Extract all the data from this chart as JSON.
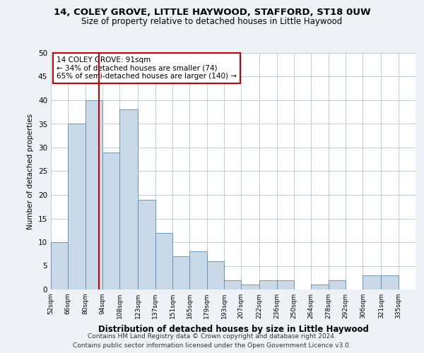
{
  "title1": "14, COLEY GROVE, LITTLE HAYWOOD, STAFFORD, ST18 0UW",
  "title2": "Size of property relative to detached houses in Little Haywood",
  "xlabel": "Distribution of detached houses by size in Little Haywood",
  "ylabel": "Number of detached properties",
  "footer1": "Contains HM Land Registry data © Crown copyright and database right 2024.",
  "footer2": "Contains public sector information licensed under the Open Government Licence v3.0.",
  "annotation_line1": "14 COLEY GROVE: 91sqm",
  "annotation_line2": "← 34% of detached houses are smaller (74)",
  "annotation_line3": "65% of semi-detached houses are larger (140) →",
  "property_size": 91,
  "bar_edges": [
    52,
    66,
    80,
    94,
    108,
    123,
    137,
    151,
    165,
    179,
    193,
    207,
    222,
    236,
    250,
    264,
    278,
    292,
    306,
    321,
    335,
    349
  ],
  "bar_heights": [
    10,
    35,
    40,
    29,
    38,
    19,
    12,
    7,
    8,
    6,
    2,
    1,
    2,
    2,
    0,
    1,
    2,
    0,
    3,
    3,
    0
  ],
  "bar_color": "#c9d9e8",
  "bar_edge_color": "#5a8db5",
  "vline_x": 91,
  "vline_color": "#cc0000",
  "bg_color": "#eef2f7",
  "plot_bg_color": "#ffffff",
  "grid_color": "#b8cfe0",
  "annotation_box_color": "#cc0000",
  "ylim": [
    0,
    50
  ],
  "yticks": [
    0,
    5,
    10,
    15,
    20,
    25,
    30,
    35,
    40,
    45,
    50
  ],
  "tick_labels": [
    "52sqm",
    "66sqm",
    "80sqm",
    "94sqm",
    "108sqm",
    "123sqm",
    "137sqm",
    "151sqm",
    "165sqm",
    "179sqm",
    "193sqm",
    "207sqm",
    "222sqm",
    "236sqm",
    "250sqm",
    "264sqm",
    "278sqm",
    "292sqm",
    "306sqm",
    "321sqm",
    "335sqm"
  ]
}
